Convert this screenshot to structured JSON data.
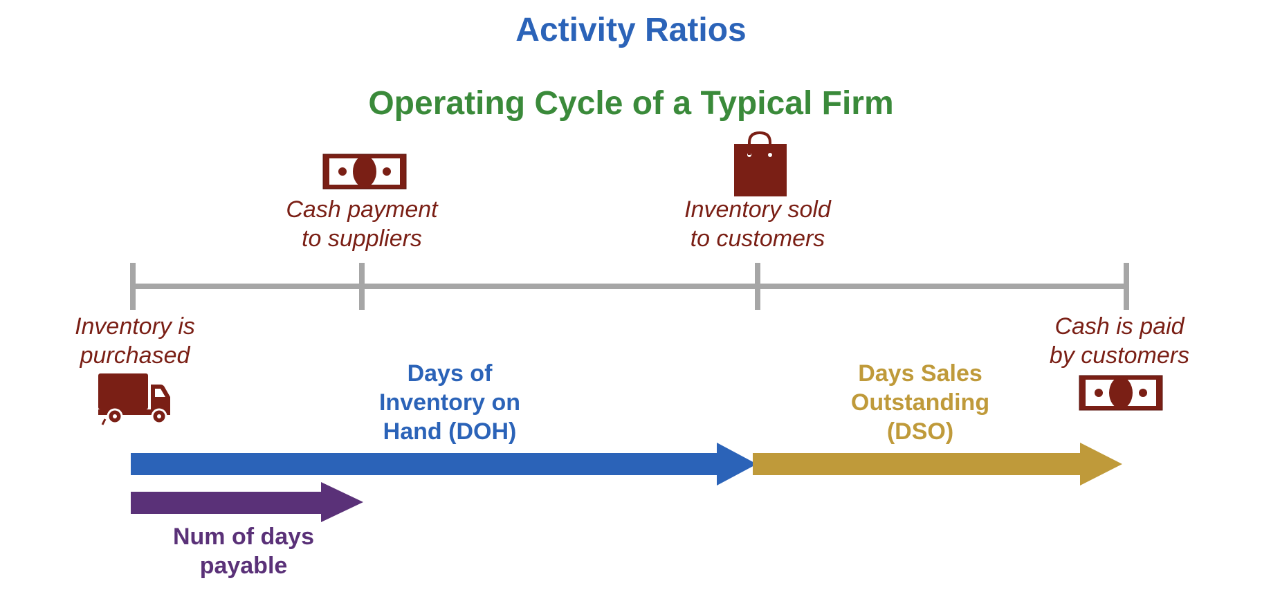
{
  "title": "Activity Ratios",
  "subtitle": "Operating Cycle of a Typical Firm",
  "events": {
    "purchase": {
      "line1": "Inventory is",
      "line2": "purchased",
      "icon": "truck-icon"
    },
    "payment": {
      "line1": "Cash payment",
      "line2": "to suppliers",
      "icon": "cash-icon"
    },
    "sold": {
      "line1": "Inventory sold",
      "line2": "to customers",
      "icon": "shopping-bag-icon"
    },
    "collection": {
      "line1": "Cash is paid",
      "line2": "by customers",
      "icon": "cash-icon"
    }
  },
  "periods": {
    "doh": {
      "line1": "Days of",
      "line2": "Inventory on",
      "line3": "Hand (DOH)",
      "color": "#2b63b8"
    },
    "dso": {
      "line1": "Days Sales",
      "line2": "Outstanding",
      "line3": "(DSO)",
      "color": "#bf9a3a"
    },
    "payable": {
      "line1": "Num of days",
      "line2": "payable",
      "color": "#5a3178"
    }
  },
  "colors": {
    "title": "#2b63b8",
    "subtitle": "#3a8a3a",
    "event_text": "#7a1f15",
    "icon": "#7a1f15",
    "timeline": "#a6a6a6"
  }
}
